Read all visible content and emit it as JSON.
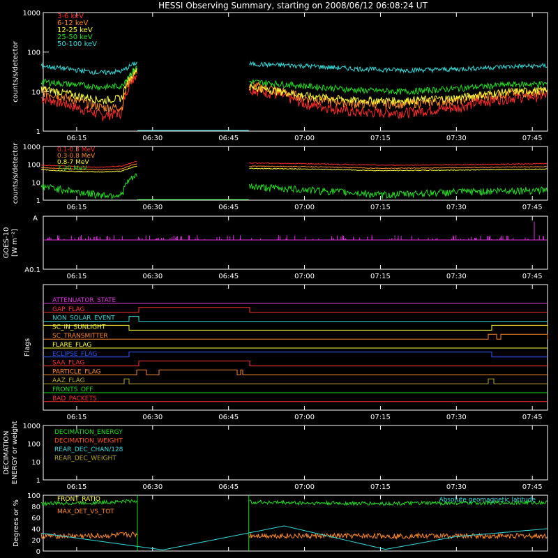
{
  "title": "HESSI Observing Summary, starting on 2008/06/12 06:08:24 UT",
  "time_ticks": [
    "06:15",
    "06:30",
    "06:45",
    "07:00",
    "07:15",
    "07:30",
    "07:45"
  ],
  "panels": {
    "lowe": {
      "ylabel": "counts/s/detector",
      "yticks": [
        "1",
        "10",
        "100",
        "1000"
      ],
      "legend": [
        {
          "label": "3-6 keV",
          "color": "#ff2a2a"
        },
        {
          "label": "6-12 keV",
          "color": "#ff8a2a"
        },
        {
          "label": "12-25 keV",
          "color": "#ffff33"
        },
        {
          "label": "25-50 keV",
          "color": "#22dd22"
        },
        {
          "label": "50-100 keV",
          "color": "#33dddd"
        }
      ]
    },
    "highe": {
      "ylabel": "counts/s/detector",
      "yticks": [
        "1",
        "10",
        "100",
        "1000"
      ],
      "legend": [
        {
          "label": "0.1-0.3 MeV",
          "color": "#ff2a2a"
        },
        {
          "label": "0.3-0.8 MeV",
          "color": "#ff8a2a"
        },
        {
          "label": "0.8-7 MeV",
          "color": "#ffff33"
        },
        {
          "label": "7-20 MeV",
          "color": "#22dd22"
        }
      ]
    },
    "goes": {
      "ylabel1": "GOES-10",
      "ylabel2": "[W m⁻²]",
      "ytop": "A",
      "ybottom": "A0.1"
    },
    "flags": {
      "ylabel": "Flags",
      "items": [
        {
          "label": "ATTENUATOR_STATE",
          "color": "#dd33dd"
        },
        {
          "label": "GAP_FLAG",
          "color": "#ff3333"
        },
        {
          "label": "NON_SOLAR_EVENT",
          "color": "#33dddd"
        },
        {
          "label": "SC_IN_SUNLIGHT",
          "color": "#ffff33"
        },
        {
          "label": "SC_TRANSMITTER",
          "color": "#ff8a2a"
        },
        {
          "label": "FLARE_FLAG",
          "color": "#ffff33"
        },
        {
          "label": "ECLIPSE_FLAG",
          "color": "#3355ff"
        },
        {
          "label": "SAA_FLAG",
          "color": "#ff3333"
        },
        {
          "label": "PARTICLE_FLAG",
          "color": "#ff8a2a"
        },
        {
          "label": "AAZ_FLAG",
          "color": "#bbaa22"
        },
        {
          "label": "FRONTS_OFF",
          "color": "#22dd22"
        },
        {
          "label": "BAD_PACKETS",
          "color": "#ff3333"
        }
      ]
    },
    "decim": {
      "ylabel1": "DECIMATION",
      "ylabel2": "ENERGY or weight",
      "yticks": [
        "1",
        "10",
        "100",
        "1000"
      ],
      "legend": [
        {
          "label": "DECIMATION_ENERGY",
          "color": "#22dd22"
        },
        {
          "label": "DECIMATION_WEIGHT",
          "color": "#ff5522"
        },
        {
          "label": "REAR_DEC_CHAN/128",
          "color": "#33dddd"
        },
        {
          "label": "REAR_DEC_WEIGHT",
          "color": "#bbaa22"
        }
      ]
    },
    "ratio": {
      "ylabel": "Degrees or %",
      "yticks": [
        "0",
        "20",
        "40",
        "60",
        "80",
        "100"
      ],
      "legend_left": [
        {
          "label": "FRONT_RATIO",
          "color": "#ffff33"
        },
        {
          "label": "MAX_DET_VS_TOT",
          "color": "#ff8a2a"
        }
      ],
      "legend_right": {
        "label": "Absolute geomagnetic latitude",
        "color": "#33dddd"
      }
    }
  },
  "chart_data": [
    {
      "type": "line",
      "panel": "lowe",
      "xlabel": "",
      "ylabel": "counts/s/detector",
      "ylim": [
        1,
        1000
      ],
      "yscale": "log",
      "xlim": [
        "06:08:24",
        "07:48"
      ],
      "data_gap": [
        "06:27",
        "06:49"
      ],
      "series": [
        {
          "name": "3-6 keV",
          "x": [
            "06:08",
            "06:15",
            "06:20",
            "06:24",
            "06:27",
            "06:49",
            "07:00",
            "07:10",
            "07:20",
            "07:30",
            "07:40",
            "07:48"
          ],
          "y": [
            7,
            4,
            2.5,
            3,
            30,
            12,
            5,
            3,
            3,
            4,
            7,
            8
          ]
        },
        {
          "name": "6-12 keV",
          "x": [
            "06:08",
            "06:15",
            "06:20",
            "06:24",
            "06:27",
            "06:49",
            "07:00",
            "07:10",
            "07:20",
            "07:30",
            "07:40",
            "07:48"
          ],
          "y": [
            10,
            6,
            4,
            4,
            35,
            15,
            7,
            5,
            5,
            6,
            9,
            10
          ]
        },
        {
          "name": "12-25 keV",
          "x": [
            "06:08",
            "06:15",
            "06:20",
            "06:24",
            "06:27",
            "06:49",
            "07:00",
            "07:10",
            "07:20",
            "07:30",
            "07:40",
            "07:48"
          ],
          "y": [
            12,
            8,
            6,
            7,
            40,
            13,
            8,
            6,
            6,
            7,
            10,
            11
          ]
        },
        {
          "name": "25-50 keV",
          "x": [
            "06:08",
            "06:15",
            "06:20",
            "06:24",
            "06:27",
            "06:49",
            "07:00",
            "07:10",
            "07:20",
            "07:30",
            "07:40",
            "07:48"
          ],
          "y": [
            18,
            15,
            13,
            14,
            42,
            18,
            14,
            11,
            10,
            12,
            15,
            16
          ]
        },
        {
          "name": "50-100 keV",
          "x": [
            "06:08",
            "06:15",
            "06:20",
            "06:24",
            "06:27",
            "06:49",
            "07:00",
            "07:10",
            "07:20",
            "07:30",
            "07:40",
            "07:48"
          ],
          "y": [
            45,
            35,
            30,
            33,
            55,
            50,
            45,
            38,
            35,
            37,
            43,
            45
          ]
        }
      ]
    },
    {
      "type": "line",
      "panel": "highe",
      "xlabel": "",
      "ylabel": "counts/s/detector",
      "ylim": [
        1,
        1000
      ],
      "yscale": "log",
      "data_gap": [
        "06:27",
        "06:49"
      ],
      "series": [
        {
          "name": "0.1-0.3 MeV",
          "x": [
            "06:08",
            "06:15",
            "06:20",
            "06:24",
            "06:27",
            "06:49",
            "07:00",
            "07:15",
            "07:30",
            "07:48"
          ],
          "y": [
            90,
            75,
            70,
            80,
            150,
            120,
            110,
            90,
            95,
            110
          ]
        },
        {
          "name": "0.3-0.8 MeV",
          "x": [
            "06:08",
            "06:15",
            "06:20",
            "06:24",
            "06:27",
            "06:49",
            "07:00",
            "07:15",
            "07:30",
            "07:48"
          ],
          "y": [
            65,
            55,
            50,
            55,
            110,
            80,
            75,
            60,
            65,
            75
          ]
        },
        {
          "name": "0.8-7 MeV",
          "x": [
            "06:08",
            "06:15",
            "06:20",
            "06:24",
            "06:27",
            "06:49",
            "07:00",
            "07:15",
            "07:30",
            "07:48"
          ],
          "y": [
            50,
            40,
            38,
            42,
            80,
            60,
            55,
            45,
            48,
            55
          ]
        },
        {
          "name": "7-20 MeV",
          "x": [
            "06:08",
            "06:15",
            "06:20",
            "06:24",
            "06:27",
            "06:49",
            "07:00",
            "07:15",
            "07:30",
            "07:48"
          ],
          "y": [
            6,
            3,
            2,
            2,
            25,
            6,
            4,
            2,
            3,
            4
          ]
        }
      ]
    },
    {
      "type": "line",
      "panel": "ratio",
      "ylabel": "Degrees or %",
      "ylim": [
        0,
        100
      ],
      "series": [
        {
          "name": "FRONT_RATIO",
          "x": [
            "06:08",
            "06:15",
            "06:20",
            "06:27",
            "06:49",
            "07:00",
            "07:15",
            "07:30",
            "07:48"
          ],
          "y": [
            85,
            86,
            87,
            90,
            88,
            86,
            85,
            86,
            87
          ]
        },
        {
          "name": "MAX_DET_VS_TOT",
          "x": [
            "06:08",
            "06:15",
            "06:20",
            "06:27",
            "06:49",
            "07:00",
            "07:15",
            "07:30",
            "07:48"
          ],
          "y": [
            27,
            27,
            27,
            30,
            28,
            27,
            27,
            27,
            27
          ]
        },
        {
          "name": "Absolute geomagnetic latitude",
          "x": [
            "06:08",
            "06:20",
            "06:32",
            "06:56",
            "07:16",
            "07:30",
            "07:48"
          ],
          "y": [
            32,
            17,
            2,
            45,
            3,
            26,
            40
          ]
        }
      ]
    }
  ]
}
